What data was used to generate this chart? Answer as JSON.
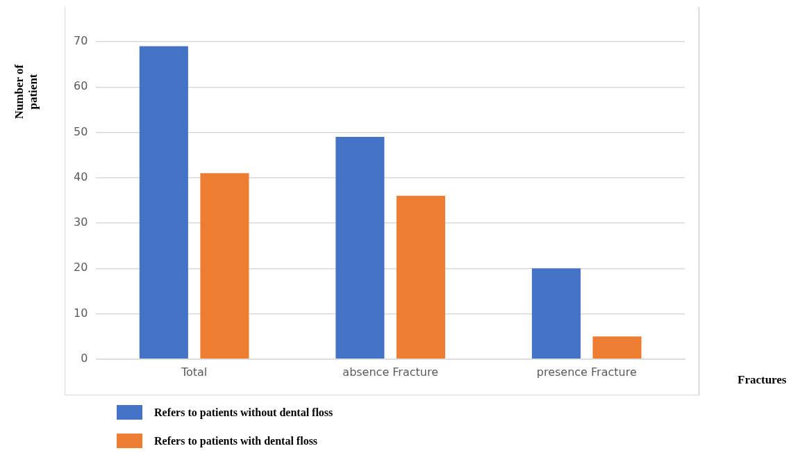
{
  "chart_data": {
    "type": "bar",
    "xlabel": "Fractures",
    "ylabel": "Number of patient",
    "categories": [
      "Total",
      "absence Fracture",
      "presence Fracture"
    ],
    "series": [
      {
        "name": "Refers to patients without dental floss",
        "color": "#4472c4",
        "values": [
          69,
          49,
          20
        ]
      },
      {
        "name": "Refers to patients with dental floss",
        "color": "#ed7d31",
        "values": [
          41,
          36,
          5
        ]
      }
    ],
    "ylim": [
      0,
      70
    ],
    "yticks": [
      0,
      10,
      20,
      30,
      40,
      50,
      60,
      70
    ],
    "grid": "y",
    "legend": "bottom"
  }
}
